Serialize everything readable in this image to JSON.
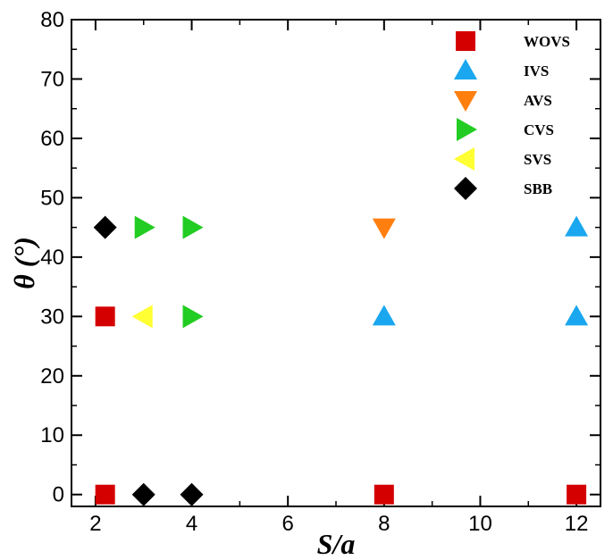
{
  "chart_data": {
    "type": "scatter",
    "xlabel": "S/a",
    "ylabel": "θ (°)",
    "xlim": [
      1.5,
      12.5
    ],
    "ylim": [
      -2,
      80
    ],
    "xticks": [
      2,
      4,
      6,
      8,
      10,
      12
    ],
    "yticks": [
      0,
      10,
      20,
      30,
      40,
      50,
      60,
      70,
      80
    ],
    "grid": false,
    "legend_position": "top-right",
    "series": [
      {
        "name": "WOVS",
        "marker": "square",
        "color": "#d40000",
        "points": [
          {
            "x": 2.2,
            "y": 30
          },
          {
            "x": 2.2,
            "y": 0
          },
          {
            "x": 8,
            "y": 0
          },
          {
            "x": 12,
            "y": 0
          }
        ]
      },
      {
        "name": "IVS",
        "marker": "triangle-up",
        "color": "#1aa7ef",
        "points": [
          {
            "x": 8,
            "y": 30
          },
          {
            "x": 12,
            "y": 45
          },
          {
            "x": 12,
            "y": 30
          }
        ]
      },
      {
        "name": "AVS",
        "marker": "triangle-down",
        "color": "#ff7f0e",
        "points": [
          {
            "x": 8,
            "y": 45
          }
        ]
      },
      {
        "name": "CVS",
        "marker": "triangle-right",
        "color": "#22cc22",
        "points": [
          {
            "x": 3,
            "y": 45
          },
          {
            "x": 4,
            "y": 45
          },
          {
            "x": 4,
            "y": 30
          }
        ]
      },
      {
        "name": "SVS",
        "marker": "triangle-left",
        "color": "#ffff33",
        "points": [
          {
            "x": 3,
            "y": 30
          }
        ]
      },
      {
        "name": "SBB",
        "marker": "diamond",
        "color": "#000000",
        "points": [
          {
            "x": 2.2,
            "y": 45
          },
          {
            "x": 3,
            "y": 0
          },
          {
            "x": 4,
            "y": 0
          }
        ]
      }
    ]
  }
}
